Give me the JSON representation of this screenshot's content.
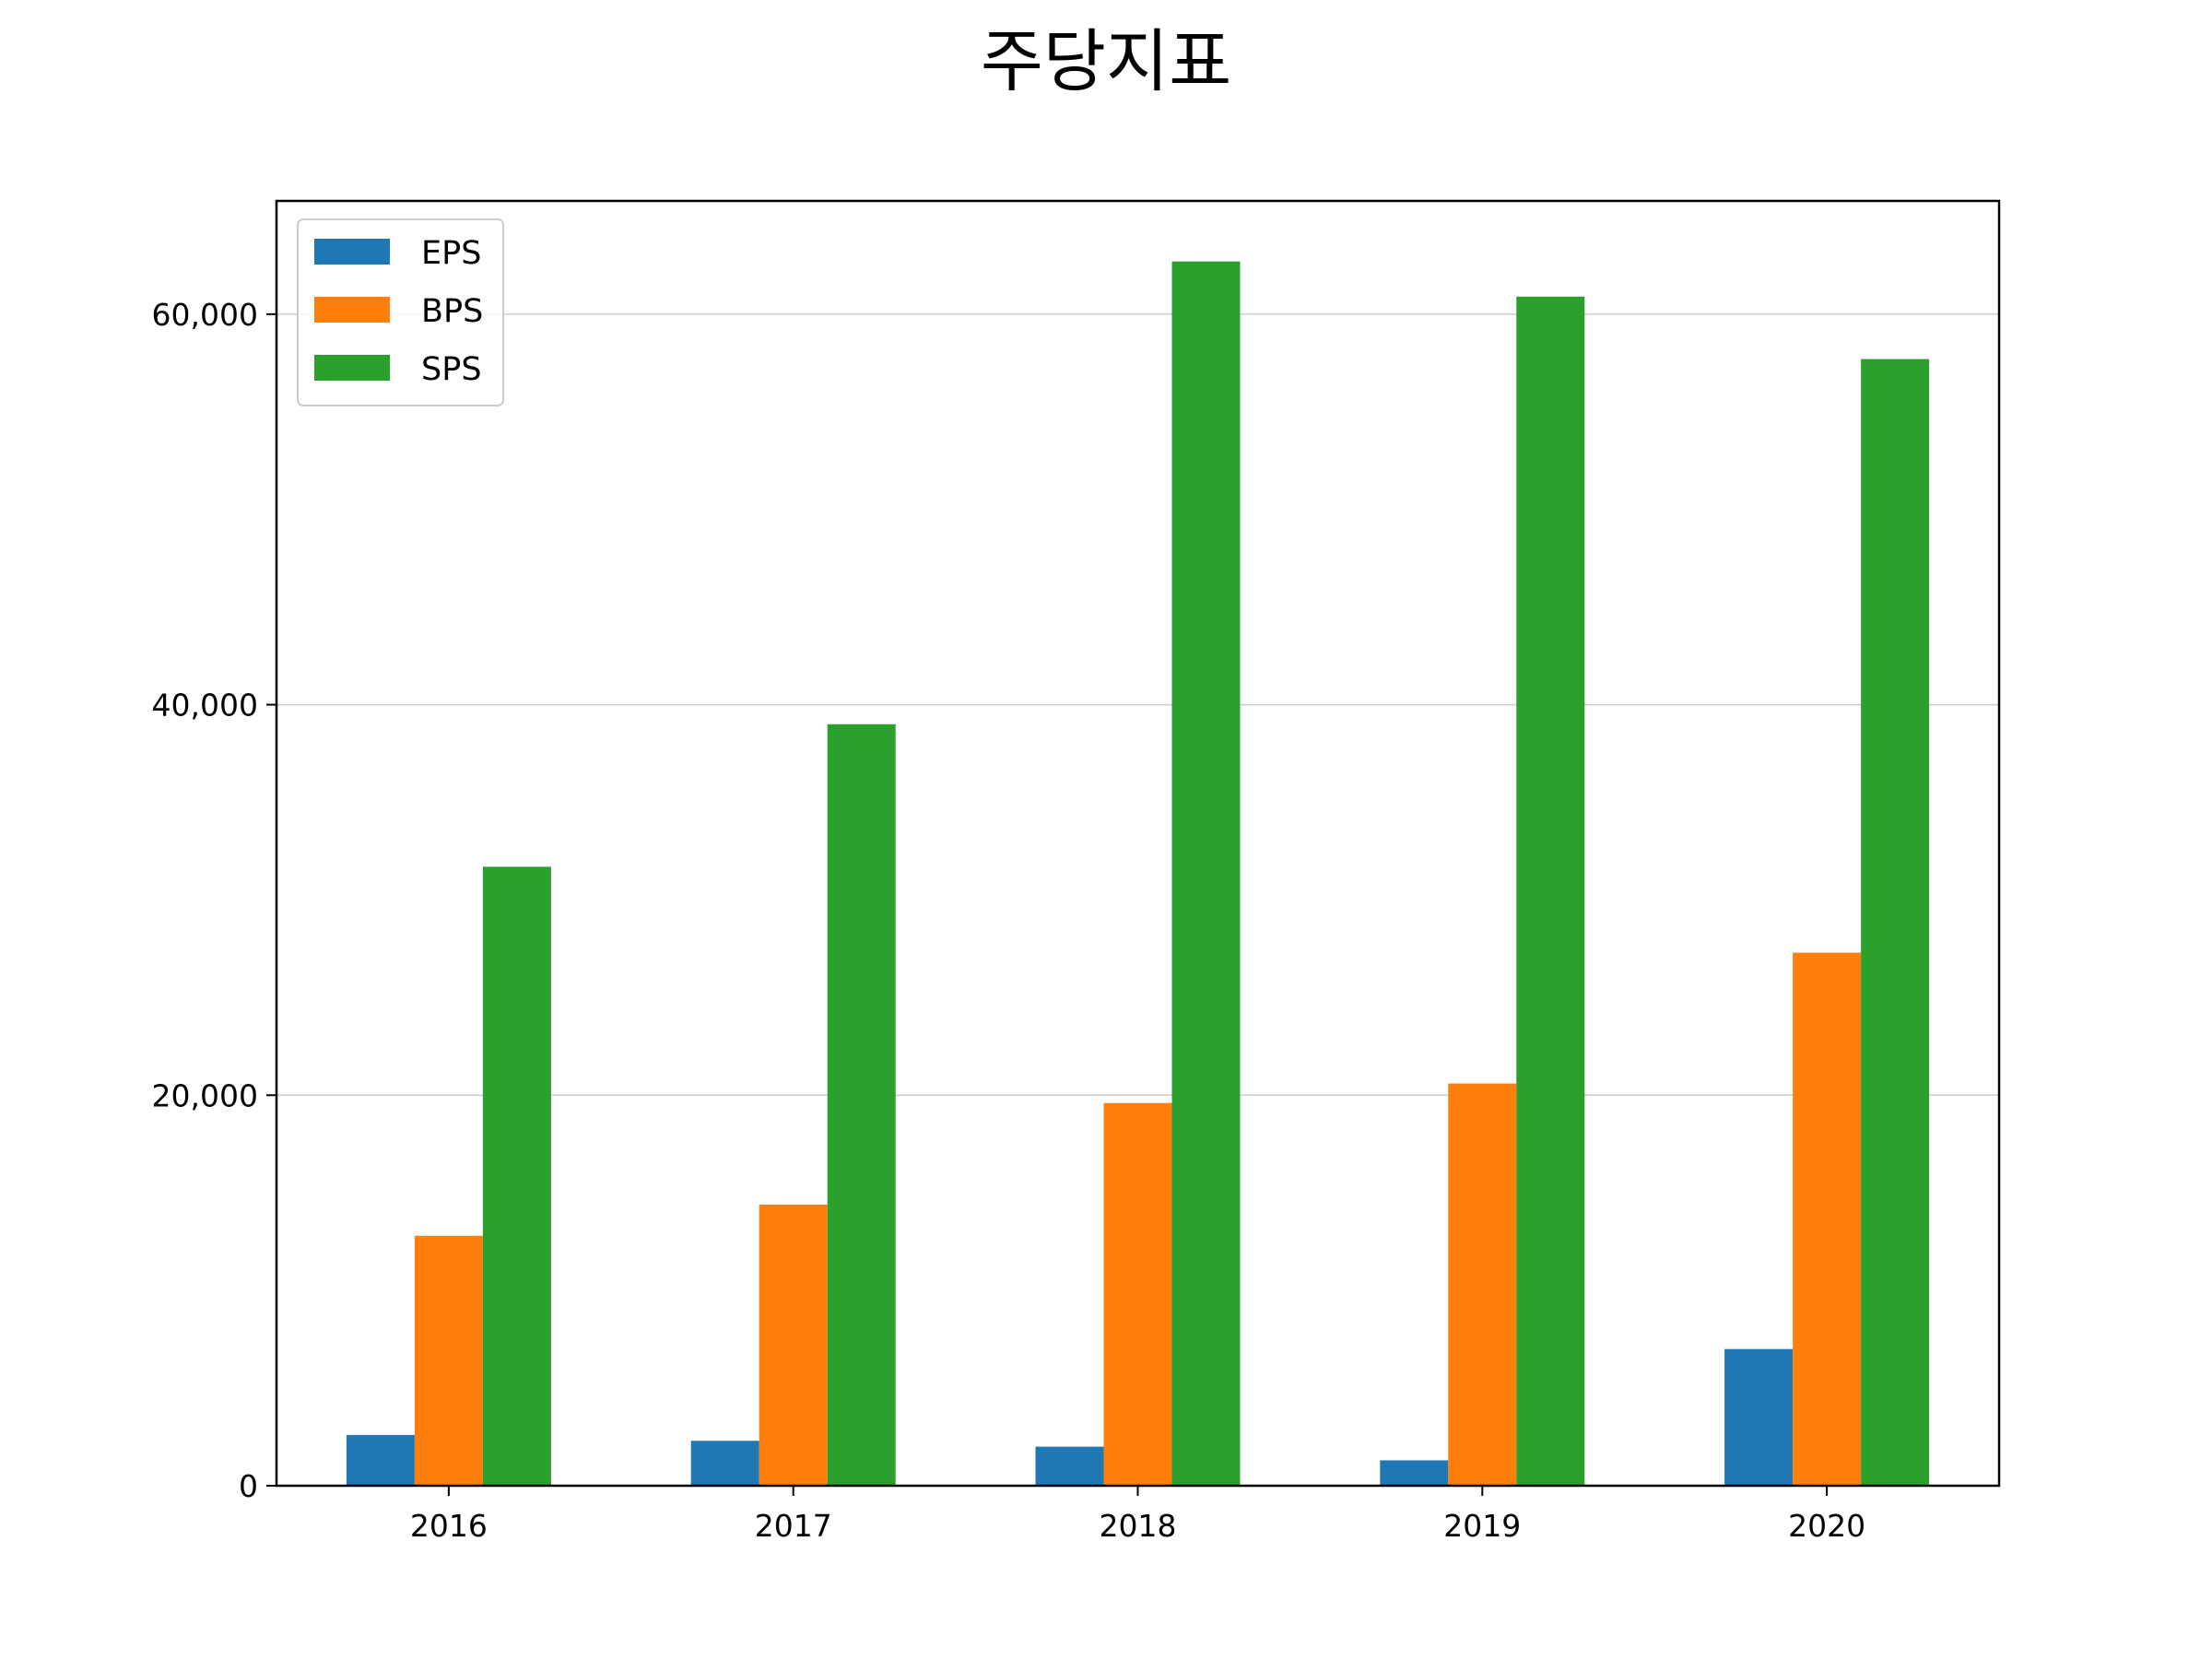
{
  "chart_data": {
    "type": "bar",
    "title": "주당지표",
    "xlabel": "",
    "ylabel": "",
    "categories": [
      "2016",
      "2017",
      "2018",
      "2019",
      "2020"
    ],
    "series": [
      {
        "name": "EPS",
        "color": "#1f77b4",
        "values": [
          2600,
          2300,
          2000,
          1300,
          7000
        ]
      },
      {
        "name": "BPS",
        "color": "#ff7f0e",
        "values": [
          12800,
          14400,
          19600,
          20600,
          27300
        ]
      },
      {
        "name": "SPS",
        "color": "#2ca02c",
        "values": [
          31700,
          39000,
          62700,
          60900,
          57700
        ]
      }
    ],
    "ylim": [
      0,
      65800
    ],
    "yticks": [
      0,
      20000,
      40000,
      60000
    ],
    "ytick_labels": [
      "0",
      "20,000",
      "40,000",
      "60,000"
    ],
    "grid": "horizontal",
    "legend_position": "top-left"
  }
}
